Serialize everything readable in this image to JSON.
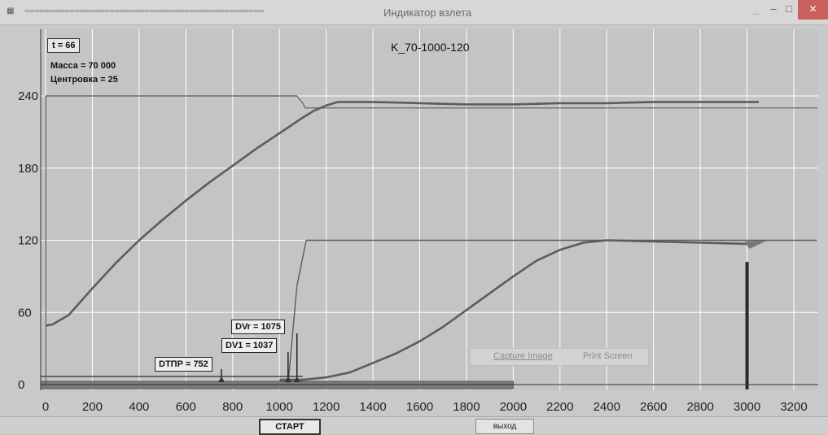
{
  "window": {
    "title": "Индикатор взлета",
    "title_dashes": "================================================",
    "title_ellipsis": "...",
    "minimize_glyph": "–",
    "maximize_glyph": "□",
    "close_glyph": "✕",
    "app_icon": "app-icon"
  },
  "info": {
    "time": "t = 66",
    "mass": "Масса = 70 000",
    "center": "Центровка = 25"
  },
  "markers": {
    "dtpr": "DTПР = 752",
    "dv1": "DV1 = 1037",
    "dvr": "DVr = 1075"
  },
  "capture": {
    "capture_label": "Capture Image",
    "print_label": "Print Screen"
  },
  "buttons": {
    "start": "СТАРТ",
    "exit": "выход"
  },
  "colors": {
    "background": "#c9c9c9",
    "curve": "#5c5c5c",
    "grid": "#ffffff",
    "bar": "#7a7a7a"
  },
  "chart_data": {
    "type": "line",
    "title": "K_70-1000-120",
    "xlim": [
      0,
      3300
    ],
    "ylim": [
      -5,
      250
    ],
    "x_ticks": [
      0,
      200,
      400,
      600,
      800,
      1000,
      1200,
      1400,
      1600,
      1800,
      2000,
      2200,
      2400,
      2600,
      2800,
      3000,
      3200
    ],
    "y_ticks": [
      0,
      60,
      120,
      180,
      240
    ],
    "grid": true,
    "series": [
      {
        "x": [
          0,
          30,
          100,
          200,
          300,
          400,
          500,
          600,
          700,
          800,
          900,
          1000,
          1100,
          1150,
          1200,
          1250,
          1300,
          1400,
          1600,
          1800,
          2000,
          2200,
          2400,
          2600,
          2800,
          3000,
          3050
        ],
        "y": [
          49,
          50,
          58,
          80,
          101,
          120,
          137,
          153,
          168,
          182,
          196,
          209,
          222,
          228,
          232,
          235,
          235,
          235,
          234,
          233,
          233,
          234,
          234,
          235,
          235,
          235,
          235
        ]
      },
      {
        "x": [
          0,
          1,
          1,
          1075,
          1100,
          1110,
          1280,
          1350,
          1500,
          2000,
          3300
        ],
        "y": [
          0,
          0,
          240,
          240,
          234,
          230,
          230,
          230,
          230,
          230,
          230
        ]
      },
      {
        "x": [
          1000,
          1100,
          1200,
          1300,
          1400,
          1500,
          1600,
          1700,
          1800,
          1900,
          2000,
          2100,
          2200,
          2300,
          2400,
          2600,
          2800,
          3000
        ],
        "y": [
          4,
          4,
          6,
          10,
          18,
          26,
          36,
          48,
          62,
          76,
          90,
          103,
          112,
          118,
          120,
          119,
          118,
          117
        ]
      },
      {
        "x": [
          1037,
          1037,
          1075,
          1075,
          1100,
          1115,
          1280,
          1500,
          2000,
          2500,
          3000,
          3300
        ],
        "y": [
          0,
          0,
          82,
          82,
          106,
          120,
          120,
          120,
          120,
          120,
          120,
          120
        ]
      }
    ],
    "annotations": [
      {
        "label": "DTПР = 752",
        "x": 752
      },
      {
        "label": "DV1 = 1037",
        "x": 1037
      },
      {
        "label": "DVr = 1075",
        "x": 1075
      }
    ],
    "progress_bar": {
      "x_from": 0,
      "x_to": 2000
    },
    "vertical_marker": {
      "x": 3000,
      "y_top": 102
    }
  }
}
